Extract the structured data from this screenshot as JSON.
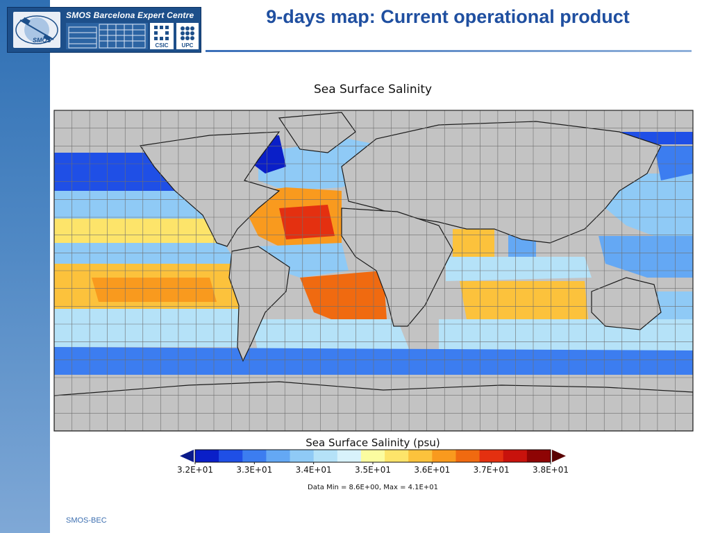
{
  "slide": {
    "title": "9-days map: Current operational product",
    "footer": "SMOS-BEC"
  },
  "logo": {
    "centre_name": "SMOS Barcelona Expert Centre",
    "mission": "SMOS",
    "partner_1": "CSIC",
    "partner_2": "UPC"
  },
  "chart_data": {
    "type": "heatmap",
    "title": "Sea Surface Salinity",
    "colorbar_label": "Sea Surface Salinity (psu)",
    "colorbar_min": 32,
    "colorbar_max": 38,
    "colorbar_ticks": [
      {
        "value": 32,
        "label": "3.2E+01"
      },
      {
        "value": 33,
        "label": "3.3E+01"
      },
      {
        "value": 34,
        "label": "3.4E+01"
      },
      {
        "value": 35,
        "label": "3.5E+01"
      },
      {
        "value": 36,
        "label": "3.6E+01"
      },
      {
        "value": 37,
        "label": "3.7E+01"
      },
      {
        "value": 38,
        "label": "3.8E+01"
      }
    ],
    "colorbar_extend": "both",
    "colors": [
      "#0a1fc8",
      "#1f4fe6",
      "#3c7df0",
      "#64a8f4",
      "#8fcaf6",
      "#b5e2f8",
      "#d8f2fb",
      "#fbfca0",
      "#fde46a",
      "#fcc23c",
      "#f99a1e",
      "#f06a10",
      "#e43010",
      "#c8120c",
      "#8e0404"
    ],
    "data_range_note": "Data Min = 8.6E+00, Max = 4.1E+01",
    "land_color": "#c3c3c3",
    "grid": true
  }
}
